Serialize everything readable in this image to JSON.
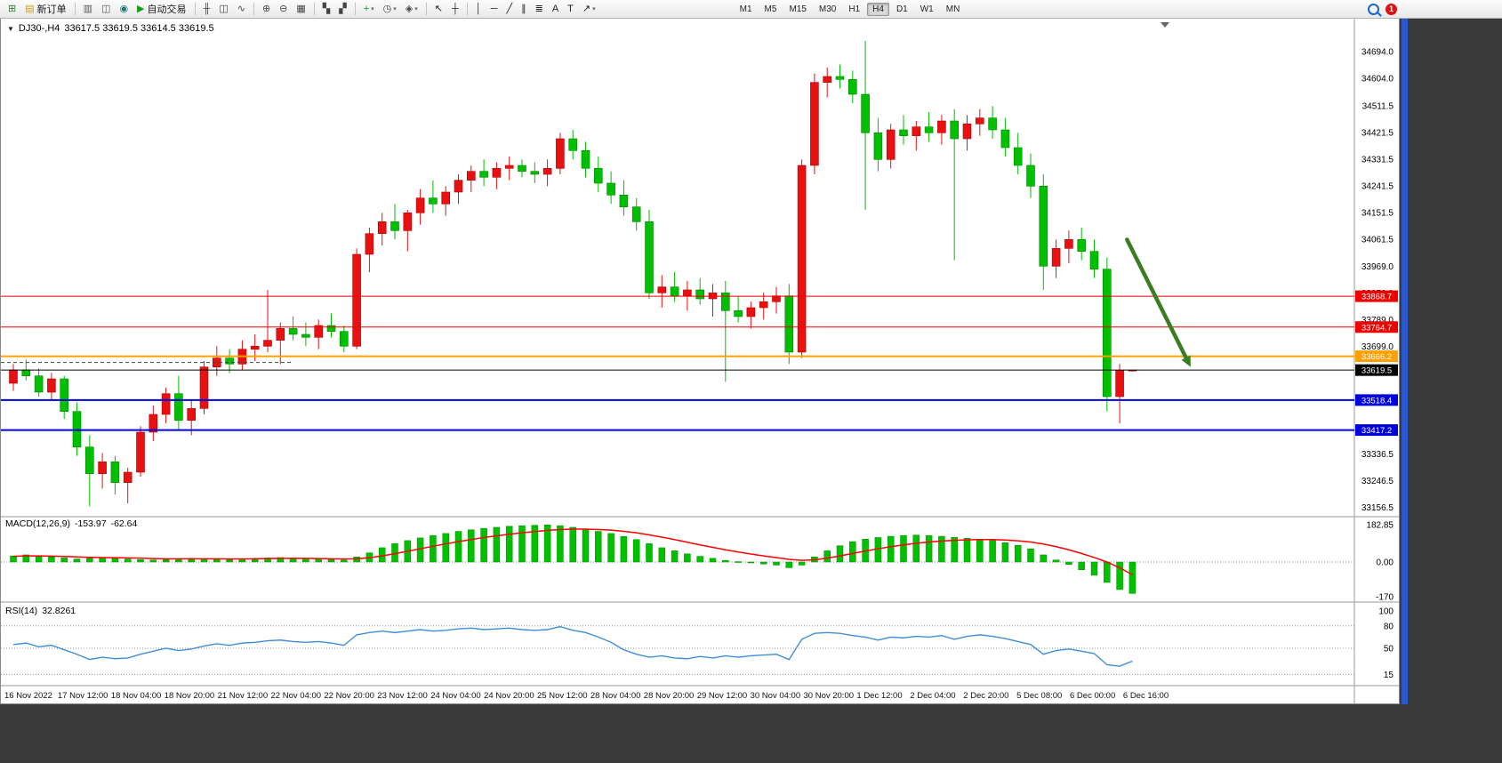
{
  "colors": {
    "up": "#E81010",
    "up_border": "#B00000",
    "down": "#00BE00",
    "down_border": "#008A00",
    "macd_hist": "#00C000",
    "macd_hist_border": "#009000",
    "macd_signal": "#FF0000",
    "rsi_line": "#3F8EDC",
    "arrow": "#3A7D22",
    "level_red": "#EE0000",
    "level_orange": "#FFA000",
    "level_blue": "#0000DC",
    "current_price": "#000000"
  },
  "toolbar": {
    "groups": [
      [
        {
          "name": "new-chart",
          "glyph": "⊞",
          "color": "#2e7d32"
        },
        {
          "name": "new-order",
          "glyph": "▤",
          "color": "#d89c00",
          "label": "新订单"
        }
      ],
      [
        {
          "name": "market-watch",
          "glyph": "▥",
          "color": "#555555"
        },
        {
          "name": "data-window",
          "glyph": "◫",
          "color": "#555555"
        },
        {
          "name": "navigator",
          "glyph": "◉",
          "color": "#1a7a7a"
        },
        {
          "name": "auto-trading",
          "glyph": "▶",
          "color": "#12a012",
          "label": "自动交易"
        }
      ],
      [
        {
          "name": "bar-chart",
          "glyph": "╫",
          "color": "#444444"
        },
        {
          "name": "candlestick-chart",
          "glyph": "◫",
          "color": "#444444"
        },
        {
          "name": "line-chart",
          "glyph": "∿",
          "color": "#444444"
        }
      ],
      [
        {
          "name": "zoom-in",
          "glyph": "⊕",
          "color": "#444444"
        },
        {
          "name": "zoom-out",
          "glyph": "⊖",
          "color": "#444444"
        },
        {
          "name": "tile-windows",
          "glyph": "▦",
          "color": "#444444"
        }
      ],
      [
        {
          "name": "auto-arrange",
          "glyph": "▚",
          "color": "#444444"
        },
        {
          "name": "chart-shift",
          "glyph": "▞",
          "color": "#444444"
        }
      ],
      [
        {
          "name": "add-indicator",
          "glyph": "+",
          "color": "#12a012",
          "dropdown": true
        },
        {
          "name": "period-selector",
          "glyph": "◷",
          "color": "#444444",
          "dropdown": true
        },
        {
          "name": "template-selector",
          "glyph": "◈",
          "color": "#444444",
          "dropdown": true
        }
      ],
      [
        {
          "name": "cursor",
          "glyph": "↖",
          "color": "#222222"
        },
        {
          "name": "crosshair",
          "glyph": "┼",
          "color": "#222222"
        }
      ],
      [
        {
          "name": "vertical-line",
          "glyph": "│",
          "color": "#222222"
        },
        {
          "name": "horizontal-line",
          "glyph": "─",
          "color": "#222222"
        },
        {
          "name": "trendline",
          "glyph": "╱",
          "color": "#222222"
        },
        {
          "name": "equidistant-channel",
          "glyph": "∥",
          "color": "#222222"
        },
        {
          "name": "fibonacci",
          "glyph": "≣",
          "color": "#222222"
        },
        {
          "name": "text",
          "glyph": "A",
          "color": "#222222"
        },
        {
          "name": "text-label",
          "glyph": "T",
          "color": "#222222"
        },
        {
          "name": "arrows-tool",
          "glyph": "↗",
          "color": "#222222",
          "dropdown": true
        }
      ]
    ],
    "timeframes": [
      {
        "label": "M1"
      },
      {
        "label": "M5"
      },
      {
        "label": "M15"
      },
      {
        "label": "M30"
      },
      {
        "label": "H1"
      },
      {
        "label": "H4",
        "active": true
      },
      {
        "label": "D1"
      },
      {
        "label": "W1"
      },
      {
        "label": "MN"
      }
    ],
    "notification_count": "1"
  },
  "header": {
    "collapse_glyph": "▼",
    "symbol_period": "DJ30-,H4",
    "ohlc": "33617.5 33619.5 33614.5 33619.5"
  },
  "chart_data": {
    "type": "candlestick",
    "symbol": "DJ30-",
    "timeframe": "H4",
    "current_bar": {
      "open": 33617.5,
      "high": 33619.5,
      "low": 33614.5,
      "close": 33619.5
    },
    "price_axis": [
      34694.0,
      34604.0,
      34511.5,
      34421.5,
      34331.5,
      34241.5,
      34151.5,
      34061.5,
      33969.0,
      33879.0,
      33789.0,
      33699.0,
      33336.5,
      33246.5,
      33156.5
    ],
    "time_labels": [
      "16 Nov 2022",
      "17 Nov 12:00",
      "18 Nov 04:00",
      "18 Nov 20:00",
      "21 Nov 12:00",
      "22 Nov 04:00",
      "22 Nov 20:00",
      "23 Nov 12:00",
      "24 Nov 04:00",
      "24 Nov 20:00",
      "25 Nov 12:00",
      "28 Nov 04:00",
      "28 Nov 20:00",
      "29 Nov 12:00",
      "30 Nov 04:00",
      "30 Nov 20:00",
      "1 Dec 12:00",
      "2 Dec 04:00",
      "2 Dec 20:00",
      "5 Dec 08:00",
      "6 Dec 00:00",
      "6 Dec 16:00"
    ],
    "candles": [
      [
        33575,
        33640,
        33550,
        33620
      ],
      [
        33620,
        33655,
        33585,
        33600
      ],
      [
        33600,
        33625,
        33530,
        33545
      ],
      [
        33545,
        33610,
        33520,
        33590
      ],
      [
        33590,
        33600,
        33455,
        33480
      ],
      [
        33480,
        33510,
        33330,
        33360
      ],
      [
        33360,
        33400,
        33160,
        33270
      ],
      [
        33270,
        33340,
        33220,
        33310
      ],
      [
        33310,
        33330,
        33200,
        33240
      ],
      [
        33240,
        33290,
        33170,
        33275
      ],
      [
        33275,
        33430,
        33260,
        33410
      ],
      [
        33410,
        33500,
        33380,
        33470
      ],
      [
        33470,
        33560,
        33440,
        33540
      ],
      [
        33540,
        33600,
        33420,
        33450
      ],
      [
        33450,
        33520,
        33400,
        33490
      ],
      [
        33490,
        33650,
        33470,
        33630
      ],
      [
        33630,
        33700,
        33600,
        33660
      ],
      [
        33660,
        33690,
        33610,
        33640
      ],
      [
        33640,
        33720,
        33620,
        33690
      ],
      [
        33690,
        33740,
        33650,
        33700
      ],
      [
        33700,
        33890,
        33680,
        33720
      ],
      [
        33720,
        33780,
        33640,
        33760
      ],
      [
        33760,
        33800,
        33720,
        33740
      ],
      [
        33740,
        33780,
        33700,
        33730
      ],
      [
        33730,
        33790,
        33690,
        33770
      ],
      [
        33770,
        33810,
        33730,
        33750
      ],
      [
        33750,
        33770,
        33680,
        33700
      ],
      [
        33700,
        34030,
        33690,
        34010
      ],
      [
        34010,
        34100,
        33950,
        34080
      ],
      [
        34080,
        34150,
        34040,
        34120
      ],
      [
        34120,
        34180,
        34060,
        34090
      ],
      [
        34090,
        34160,
        34020,
        34150
      ],
      [
        34150,
        34230,
        34110,
        34200
      ],
      [
        34200,
        34260,
        34150,
        34180
      ],
      [
        34180,
        34240,
        34140,
        34220
      ],
      [
        34220,
        34280,
        34180,
        34260
      ],
      [
        34260,
        34310,
        34220,
        34290
      ],
      [
        34290,
        34330,
        34240,
        34270
      ],
      [
        34270,
        34320,
        34230,
        34300
      ],
      [
        34300,
        34340,
        34260,
        34310
      ],
      [
        34310,
        34330,
        34270,
        34290
      ],
      [
        34290,
        34320,
        34250,
        34280
      ],
      [
        34280,
        34330,
        34240,
        34300
      ],
      [
        34300,
        34420,
        34280,
        34400
      ],
      [
        34400,
        34430,
        34330,
        34360
      ],
      [
        34360,
        34390,
        34270,
        34300
      ],
      [
        34300,
        34340,
        34220,
        34250
      ],
      [
        34250,
        34290,
        34180,
        34210
      ],
      [
        34210,
        34260,
        34140,
        34170
      ],
      [
        34170,
        34200,
        34090,
        34120
      ],
      [
        34120,
        34160,
        33860,
        33880
      ],
      [
        33880,
        33940,
        33830,
        33900
      ],
      [
        33900,
        33950,
        33850,
        33870
      ],
      [
        33870,
        33920,
        33820,
        33890
      ],
      [
        33890,
        33930,
        33840,
        33860
      ],
      [
        33860,
        33910,
        33800,
        33880
      ],
      [
        33880,
        33920,
        33580,
        33820
      ],
      [
        33820,
        33870,
        33780,
        33800
      ],
      [
        33800,
        33850,
        33760,
        33830
      ],
      [
        33830,
        33880,
        33790,
        33850
      ],
      [
        33850,
        33900,
        33810,
        33870
      ],
      [
        33870,
        33910,
        33640,
        33680
      ],
      [
        33680,
        34330,
        33660,
        34310
      ],
      [
        34310,
        34620,
        34280,
        34590
      ],
      [
        34590,
        34640,
        34540,
        34610
      ],
      [
        34610,
        34650,
        34570,
        34600
      ],
      [
        34600,
        34630,
        34520,
        34550
      ],
      [
        34550,
        34730,
        34160,
        34420
      ],
      [
        34420,
        34470,
        34290,
        34330
      ],
      [
        34330,
        34450,
        34300,
        34430
      ],
      [
        34430,
        34480,
        34380,
        34410
      ],
      [
        34410,
        34460,
        34360,
        34440
      ],
      [
        34440,
        34490,
        34390,
        34420
      ],
      [
        34420,
        34480,
        34380,
        34460
      ],
      [
        34460,
        34500,
        33990,
        34400
      ],
      [
        34400,
        34480,
        34360,
        34450
      ],
      [
        34450,
        34500,
        34410,
        34470
      ],
      [
        34470,
        34510,
        34400,
        34430
      ],
      [
        34430,
        34470,
        34340,
        34370
      ],
      [
        34370,
        34420,
        34280,
        34310
      ],
      [
        34310,
        34350,
        34200,
        34240
      ],
      [
        34240,
        34280,
        33890,
        33970
      ],
      [
        33970,
        34060,
        33930,
        34030
      ],
      [
        34030,
        34090,
        33980,
        34060
      ],
      [
        34060,
        34100,
        33990,
        34020
      ],
      [
        34020,
        34060,
        33930,
        33960
      ],
      [
        33960,
        34000,
        33480,
        33530
      ],
      [
        33530,
        33640,
        33440,
        33617.5
      ],
      [
        33617.5,
        33619.5,
        33614.5,
        33619.5
      ]
    ],
    "levels": [
      {
        "price": 33868.7,
        "color": "#EE0000",
        "width": 1
      },
      {
        "price": 33764.7,
        "color": "#EE0000",
        "width": 1
      },
      {
        "price": 33666.2,
        "color": "#FFA000",
        "width": 2
      },
      {
        "price": 33619.5,
        "color": "#000000",
        "width": 1,
        "role": "current-price"
      },
      {
        "price": 33518.4,
        "color": "#0000DC",
        "width": 2
      },
      {
        "price": 33417.2,
        "color": "#0000DC",
        "width": 2
      }
    ],
    "dashed_segment": {
      "price": 33645,
      "x_frac_start": 0.0,
      "x_frac_end": 0.215,
      "color": "#444444"
    },
    "arrow": {
      "from_frac": 0.832,
      "from_price": 34060,
      "to_frac": 0.879,
      "to_price": 33630
    },
    "macd": {
      "title": "MACD(12,26,9)",
      "value_main": "-153.97",
      "value_signal": "-62.64",
      "axis": [
        {
          "value": 182.85,
          "text": "182.85"
        },
        {
          "value": 0,
          "text": "0.00"
        },
        {
          "value": -170,
          "text": "-170"
        }
      ],
      "histogram": [
        30,
        35,
        30,
        25,
        20,
        15,
        18,
        22,
        20,
        15,
        12,
        10,
        12,
        15,
        18,
        16,
        14,
        12,
        15,
        18,
        20,
        22,
        20,
        18,
        15,
        12,
        10,
        25,
        45,
        70,
        90,
        105,
        118,
        130,
        140,
        150,
        158,
        165,
        170,
        175,
        178,
        180,
        182,
        178,
        170,
        160,
        150,
        140,
        125,
        110,
        90,
        70,
        55,
        40,
        28,
        18,
        8,
        2,
        -4,
        -10,
        -15,
        -28,
        -15,
        25,
        55,
        80,
        100,
        112,
        120,
        126,
        130,
        132,
        130,
        126,
        121,
        116,
        111,
        105,
        95,
        82,
        65,
        35,
        10,
        -12,
        -38,
        -65,
        -100,
        -135,
        -153.97
      ],
      "signal": [
        28,
        30,
        30,
        29,
        27,
        25,
        23,
        22,
        21,
        20,
        19,
        17,
        16,
        16,
        16,
        16,
        16,
        15,
        15,
        16,
        17,
        18,
        18,
        18,
        17,
        16,
        15,
        16,
        21,
        30,
        41,
        53,
        65,
        77,
        89,
        100,
        110,
        120,
        128,
        136,
        143,
        149,
        155,
        159,
        161,
        161,
        159,
        156,
        150,
        143,
        133,
        122,
        110,
        97,
        84,
        72,
        60,
        49,
        39,
        30,
        22,
        13,
        8,
        11,
        19,
        30,
        42,
        54,
        65,
        75,
        84,
        92,
        98,
        103,
        106,
        109,
        110,
        110,
        108,
        104,
        98,
        88,
        75,
        60,
        42,
        22,
        0,
        -28,
        -62.64
      ]
    },
    "rsi": {
      "title": "RSI(14)",
      "value": "32.8261",
      "levels": [
        80,
        50,
        15
      ],
      "axis": [
        {
          "value": 100,
          "text": "100"
        },
        {
          "value": 80,
          "text": "80"
        },
        {
          "value": 50,
          "text": "50"
        },
        {
          "value": 15,
          "text": "15"
        }
      ],
      "values": [
        55,
        57,
        52,
        54,
        48,
        42,
        35,
        38,
        36,
        37,
        42,
        46,
        50,
        47,
        49,
        53,
        56,
        54,
        57,
        58,
        60,
        61,
        59,
        58,
        59,
        57,
        54,
        68,
        71,
        73,
        71,
        73,
        75,
        73,
        74,
        76,
        77,
        75,
        76,
        77,
        75,
        74,
        75,
        79,
        74,
        71,
        65,
        58,
        48,
        42,
        38,
        40,
        37,
        36,
        39,
        37,
        40,
        38,
        40,
        41,
        42,
        35,
        62,
        70,
        71,
        70,
        67,
        65,
        61,
        65,
        64,
        66,
        65,
        67,
        62,
        66,
        68,
        66,
        63,
        59,
        55,
        42,
        47,
        49,
        46,
        43,
        28,
        26,
        32.8261
      ]
    }
  }
}
